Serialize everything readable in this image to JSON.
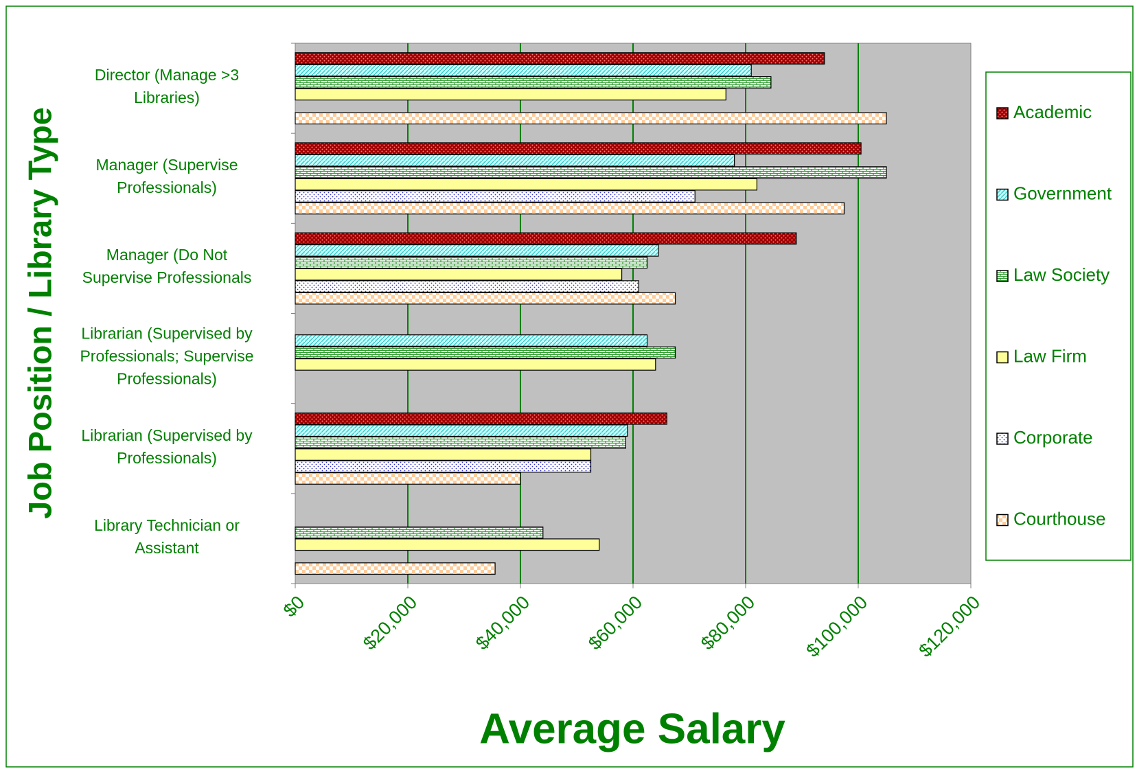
{
  "chart_data": {
    "type": "bar",
    "orientation": "horizontal",
    "x_label": "Average Salary",
    "y_label": "Job Position / Library Type",
    "categories": [
      "Director (Manage >3\nLibraries)",
      "Manager (Supervise\nProfessionals)",
      "Manager (Do Not\nSupervise Professionals",
      "Librarian (Supervised by\nProfessionals; Supervise\nProfessionals)",
      "Librarian (Supervised by\nProfessionals)",
      "Library Technician or\nAssistant"
    ],
    "series": [
      {
        "name": "Academic",
        "color": "#a00000",
        "values": [
          94000,
          100500,
          89000,
          null,
          66000,
          null
        ]
      },
      {
        "name": "Government",
        "color": "#33cccc",
        "values": [
          81000,
          78000,
          64500,
          62500,
          59000,
          null
        ]
      },
      {
        "name": "Law Society",
        "color": "#339933",
        "values": [
          84500,
          105000,
          62500,
          67500,
          58700,
          44000
        ]
      },
      {
        "name": "Law Firm",
        "color": "#ffff99",
        "values": [
          76500,
          82000,
          58000,
          64000,
          52500,
          54000
        ]
      },
      {
        "name": "Corporate",
        "color": "#3333cc",
        "values": [
          null,
          71000,
          61000,
          null,
          52500,
          null
        ]
      },
      {
        "name": "Courthouse",
        "color": "#ffcc99",
        "values": [
          105000,
          97500,
          67500,
          null,
          40000,
          35500
        ]
      }
    ],
    "xlim": [
      0,
      120000
    ],
    "xticks": [
      {
        "value": 0,
        "label": "$0"
      },
      {
        "value": 20000,
        "label": "$20,000"
      },
      {
        "value": 40000,
        "label": "$40,000"
      },
      {
        "value": 60000,
        "label": "$60,000"
      },
      {
        "value": 80000,
        "label": "$80,000"
      },
      {
        "value": 100000,
        "label": "$100,000"
      },
      {
        "value": 120000,
        "label": "$120,000"
      }
    ],
    "grid": true,
    "legend": "right"
  }
}
